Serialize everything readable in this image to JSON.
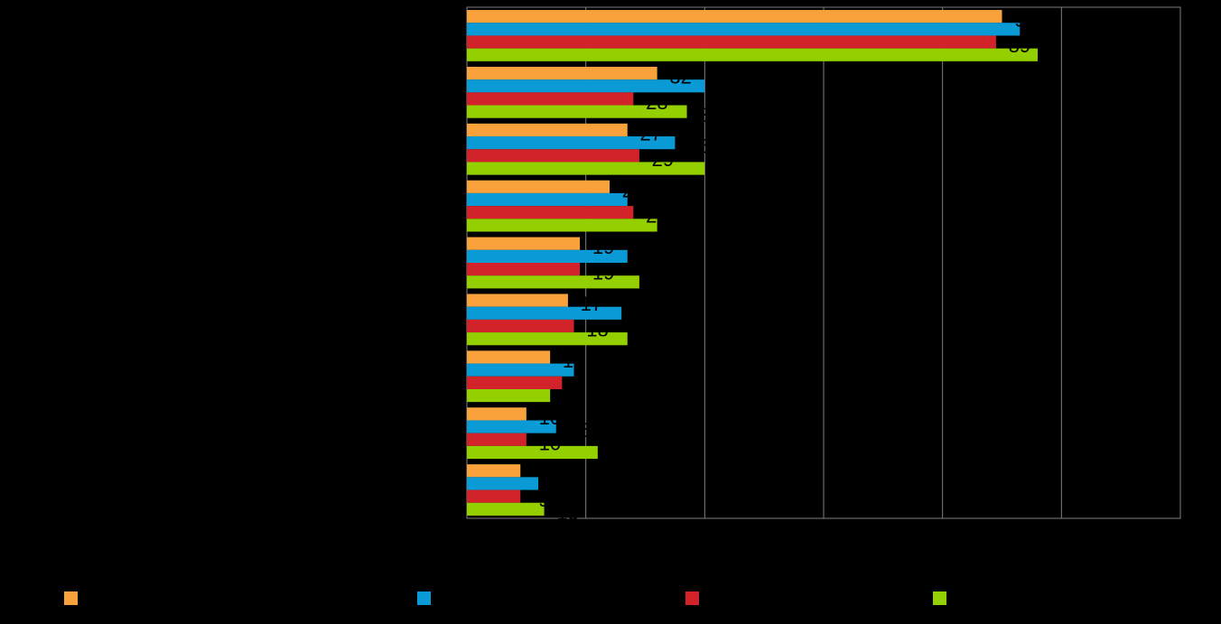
{
  "chart_data": {
    "type": "hbar",
    "categories": [
      null,
      null,
      null,
      null,
      null,
      null,
      null,
      null,
      null
    ],
    "series": [
      {
        "color": "#f9a23b",
        "values": [
          90,
          32,
          27,
          24,
          19,
          17,
          14,
          10,
          9
        ]
      },
      {
        "color": "#0a9bd6",
        "values": [
          93,
          40,
          35,
          27,
          27,
          26,
          18,
          15,
          12
        ]
      },
      {
        "color": "#d2232a",
        "values": [
          89,
          28,
          29,
          28,
          19,
          18,
          16,
          10,
          9
        ]
      },
      {
        "color": "#94d000",
        "values": [
          96,
          37,
          40,
          32,
          29,
          27,
          14,
          22,
          13
        ]
      }
    ],
    "xlim": [
      0,
      120
    ],
    "xticks": [
      0,
      20,
      40,
      60,
      80,
      100,
      120
    ],
    "grid": true
  }
}
